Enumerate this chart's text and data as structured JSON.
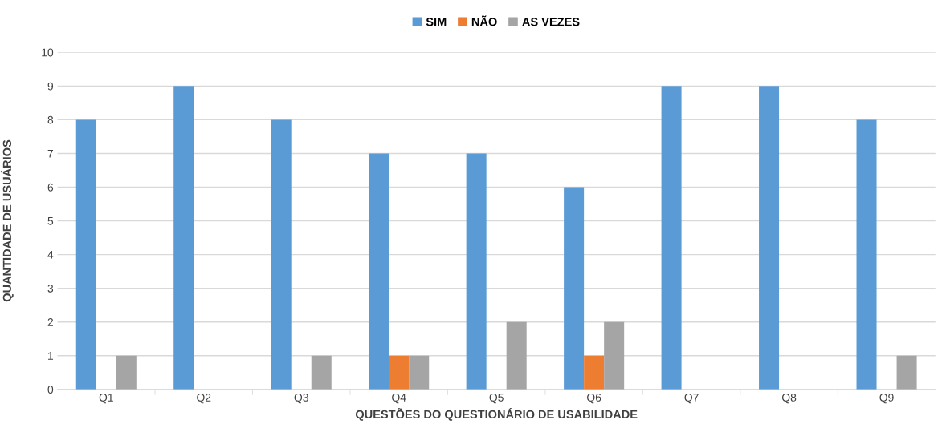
{
  "chart_data": {
    "type": "bar",
    "xlabel": "QUESTÕES DO QUESTIONÁRIO DE USABILIDADE",
    "ylabel": "QUANTIDADE DE USUÁRIOS",
    "categories": [
      "Q1",
      "Q2",
      "Q3",
      "Q4",
      "Q5",
      "Q6",
      "Q7",
      "Q8",
      "Q9"
    ],
    "series": [
      {
        "name": "SIM",
        "color": "#5b9bd5",
        "values": [
          8,
          9,
          8,
          7,
          7,
          6,
          9,
          9,
          8
        ]
      },
      {
        "name": "NÃO",
        "color": "#ed7d31",
        "values": [
          0,
          0,
          0,
          1,
          0,
          1,
          0,
          0,
          0
        ]
      },
      {
        "name": "AS VEZES",
        "color": "#a5a5a5",
        "values": [
          1,
          0,
          1,
          1,
          2,
          2,
          0,
          0,
          1
        ]
      }
    ],
    "ylim": [
      0,
      10
    ],
    "yticks": [
      0,
      1,
      2,
      3,
      4,
      5,
      6,
      7,
      8,
      9,
      10
    ],
    "grid": "y",
    "legend": "top"
  }
}
